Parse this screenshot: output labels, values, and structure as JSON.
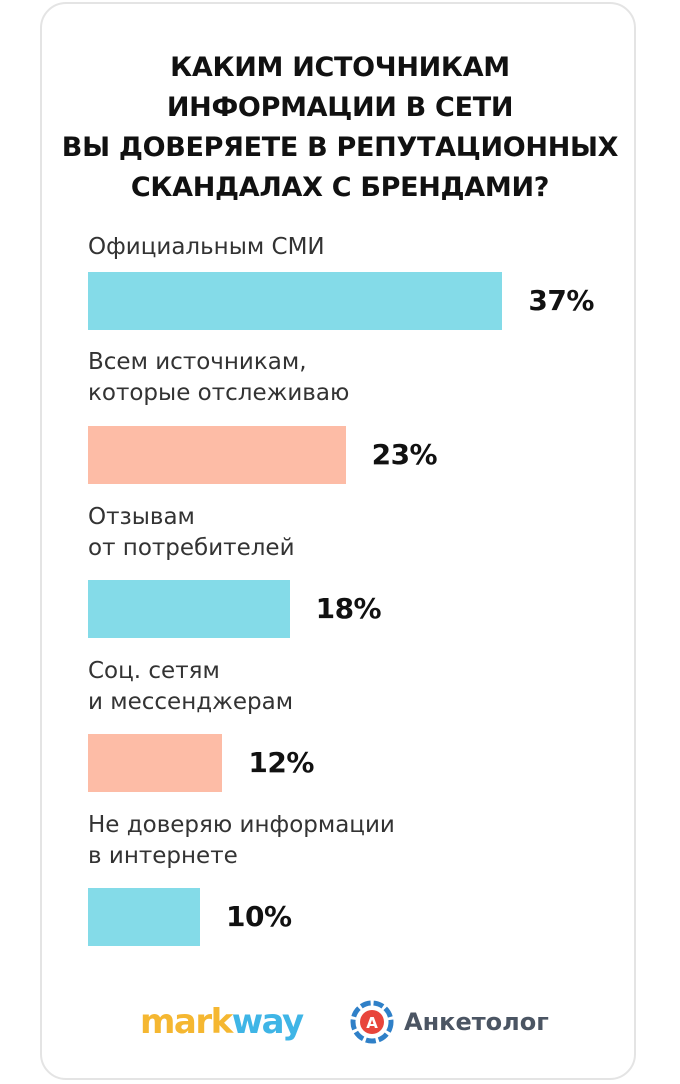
{
  "title": "КАКИМ ИСТОЧНИКАМ\nИНФОРМАЦИИ В СЕТИ\nВЫ ДОВЕРЯЕТЕ В РЕПУТАЦИОННЫХ\nСКАНДАЛАХ С БРЕНДАМИ?",
  "colors": {
    "cyan": "#84dbe8",
    "peach": "#fdbca6"
  },
  "chart_data": {
    "type": "bar",
    "orientation": "horizontal",
    "title": "КАКИМ ИСТОЧНИКАМ ИНФОРМАЦИИ В СЕТИ ВЫ ДОВЕРЯЕТЕ В РЕПУТАЦИОННЫХ СКАНДАЛАХ С БРЕНДАМИ?",
    "categories": [
      "Официальным СМИ",
      "Всем источникам,\nкоторые отслеживаю",
      "Отзывам\nот потребителей",
      "Соц. сетям\nи мессенджерам",
      "Не доверяю информации\nв интернете"
    ],
    "values": [
      37,
      23,
      18,
      12,
      10
    ],
    "value_labels": [
      "37%",
      "23%",
      "18%",
      "12%",
      "10%"
    ],
    "bar_colors": [
      "#84dbe8",
      "#fdbca6",
      "#84dbe8",
      "#fdbca6",
      "#84dbe8"
    ],
    "unit": "%",
    "grid": false,
    "legend": "none"
  },
  "logos": {
    "markway_part1": "mark",
    "markway_part2": "way",
    "anketolog": "Анкетолог",
    "anketolog_letter": "А"
  }
}
